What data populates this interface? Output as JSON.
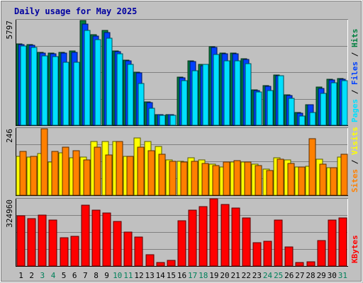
{
  "chart_data": {
    "type": "bar",
    "title": "Daily usage for May 2025",
    "categories": [
      "1",
      "2",
      "3",
      "4",
      "5",
      "6",
      "7",
      "8",
      "9",
      "10",
      "11",
      "12",
      "13",
      "14",
      "15",
      "16",
      "17",
      "18",
      "19",
      "20",
      "21",
      "22",
      "23",
      "24",
      "25",
      "26",
      "27",
      "28",
      "29",
      "30",
      "31"
    ],
    "weekend_days": [
      "3",
      "4",
      "10",
      "11",
      "17",
      "18",
      "24",
      "25",
      "31"
    ],
    "panels": [
      {
        "id": "hits",
        "ymax": 5797,
        "ymax_label": "5797",
        "legend": [
          {
            "name": "Hits",
            "color": "#008040"
          },
          {
            "name": "Files",
            "color": "#0040ff"
          },
          {
            "name": "Pages",
            "color": "#00e0ff"
          }
        ],
        "legend_separator": " / ",
        "series": [
          {
            "name": "Hits",
            "color": "#008040",
            "values": [
              4500,
              4450,
              4050,
              4000,
              4050,
              4100,
              5800,
              5000,
              5250,
              4100,
              3600,
              2950,
              1300,
              600,
              600,
              2650,
              3550,
              3350,
              4350,
              4000,
              4000,
              3700,
              1950,
              2180,
              2800,
              1700,
              700,
              1150,
              2100,
              2550,
              2580
            ]
          },
          {
            "name": "Files",
            "color": "#0040ff",
            "values": [
              4470,
              4420,
              4000,
              3950,
              4000,
              4050,
              5600,
              4950,
              5150,
              4060,
              3560,
              2900,
              1250,
              590,
              580,
              2610,
              3520,
              3300,
              4290,
              3950,
              3950,
              3650,
              1930,
              2150,
              2760,
              1660,
              680,
              1120,
              2050,
              2510,
              2540
            ]
          },
          {
            "name": "Pages",
            "color": "#00e0ff",
            "values": [
              4400,
              4300,
              3850,
              3800,
              3500,
              3500,
              5250,
              4750,
              4800,
              3950,
              3350,
              2300,
              950,
              560,
              560,
              2450,
              3000,
              3350,
              3900,
              3550,
              3550,
              3400,
              1850,
              1900,
              2750,
              1500,
              500,
              700,
              1750,
              2350,
              2450
            ]
          }
        ]
      },
      {
        "id": "visits",
        "ymax": 246,
        "ymax_label": "246",
        "legend": [
          {
            "name": "Visits",
            "color": "#ffff00"
          },
          {
            "name": "Sites",
            "color": "#ff8000"
          }
        ],
        "legend_separator": " / ",
        "series": [
          {
            "name": "Visits",
            "color": "#ffff00",
            "values": [
              145,
              142,
              155,
              122,
              158,
              138,
              142,
              200,
              198,
              199,
              143,
              212,
              199,
              181,
              131,
              125,
              138,
              131,
              115,
              104,
              124,
              124,
              114,
              98,
              139,
              132,
              105,
              107,
              133,
              103,
              141
            ]
          },
          {
            "name": "Sites",
            "color": "#ff8000",
            "values": [
              163,
              143,
              246,
              162,
              179,
              165,
              130,
              178,
              150,
              198,
              143,
              177,
              165,
              152,
              125,
              124,
              125,
              118,
              111,
              124,
              129,
              122,
              111,
              91,
              133,
              119,
              104,
              209,
              114,
              103,
              153
            ]
          }
        ]
      },
      {
        "id": "kbytes",
        "ymax": 324960,
        "ymax_label": "324960",
        "legend": [
          {
            "name": "KBytes",
            "color": "#ff0000"
          }
        ],
        "legend_separator": "",
        "series": [
          {
            "name": "KBytes",
            "color": "#ff0000",
            "values": [
              247000,
              233000,
              250000,
              226000,
              137000,
              144000,
              298000,
              274000,
              260000,
              218000,
              167000,
              143000,
              57000,
              19000,
              26000,
              221000,
              272000,
              292000,
              330000,
              301000,
              282000,
              234000,
              113000,
              121000,
              226000,
              93000,
              19000,
              21000,
              126000,
              226000,
              234000
            ]
          }
        ]
      }
    ]
  }
}
